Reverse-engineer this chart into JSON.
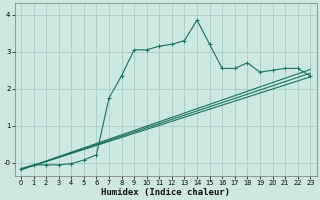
{
  "xlabel": "Humidex (Indice chaleur)",
  "background_color": "#cce8e0",
  "grid_color": "#aaccc4",
  "line_color": "#1a7060",
  "xlim": [
    -0.5,
    23.5
  ],
  "ylim": [
    -0.35,
    4.3
  ],
  "xticks": [
    0,
    1,
    2,
    3,
    4,
    5,
    6,
    7,
    8,
    9,
    10,
    11,
    12,
    13,
    14,
    15,
    16,
    17,
    18,
    19,
    20,
    21,
    22,
    23
  ],
  "yticks": [
    0,
    1,
    2,
    3,
    4
  ],
  "ytick_labels": [
    "-0",
    "1",
    "2",
    "3",
    "4"
  ],
  "curve1_x": [
    0,
    1,
    2,
    3,
    4,
    5,
    6,
    7,
    8,
    9,
    10,
    11,
    12,
    13,
    14,
    15,
    16,
    17,
    18,
    19,
    20,
    21,
    22,
    23
  ],
  "curve1_y": [
    -0.15,
    -0.05,
    -0.05,
    -0.05,
    -0.02,
    0.08,
    0.22,
    1.75,
    2.35,
    3.05,
    3.05,
    3.15,
    3.2,
    3.3,
    3.85,
    3.2,
    2.55,
    2.55,
    2.7,
    2.45,
    2.5,
    2.55,
    2.55,
    2.35
  ],
  "curve2_x": [
    0,
    23
  ],
  "curve2_y": [
    -0.18,
    2.32
  ],
  "curve3_x": [
    0,
    23
  ],
  "curve3_y": [
    -0.18,
    2.42
  ],
  "curve4_x": [
    0,
    23
  ],
  "curve4_y": [
    -0.18,
    2.52
  ]
}
